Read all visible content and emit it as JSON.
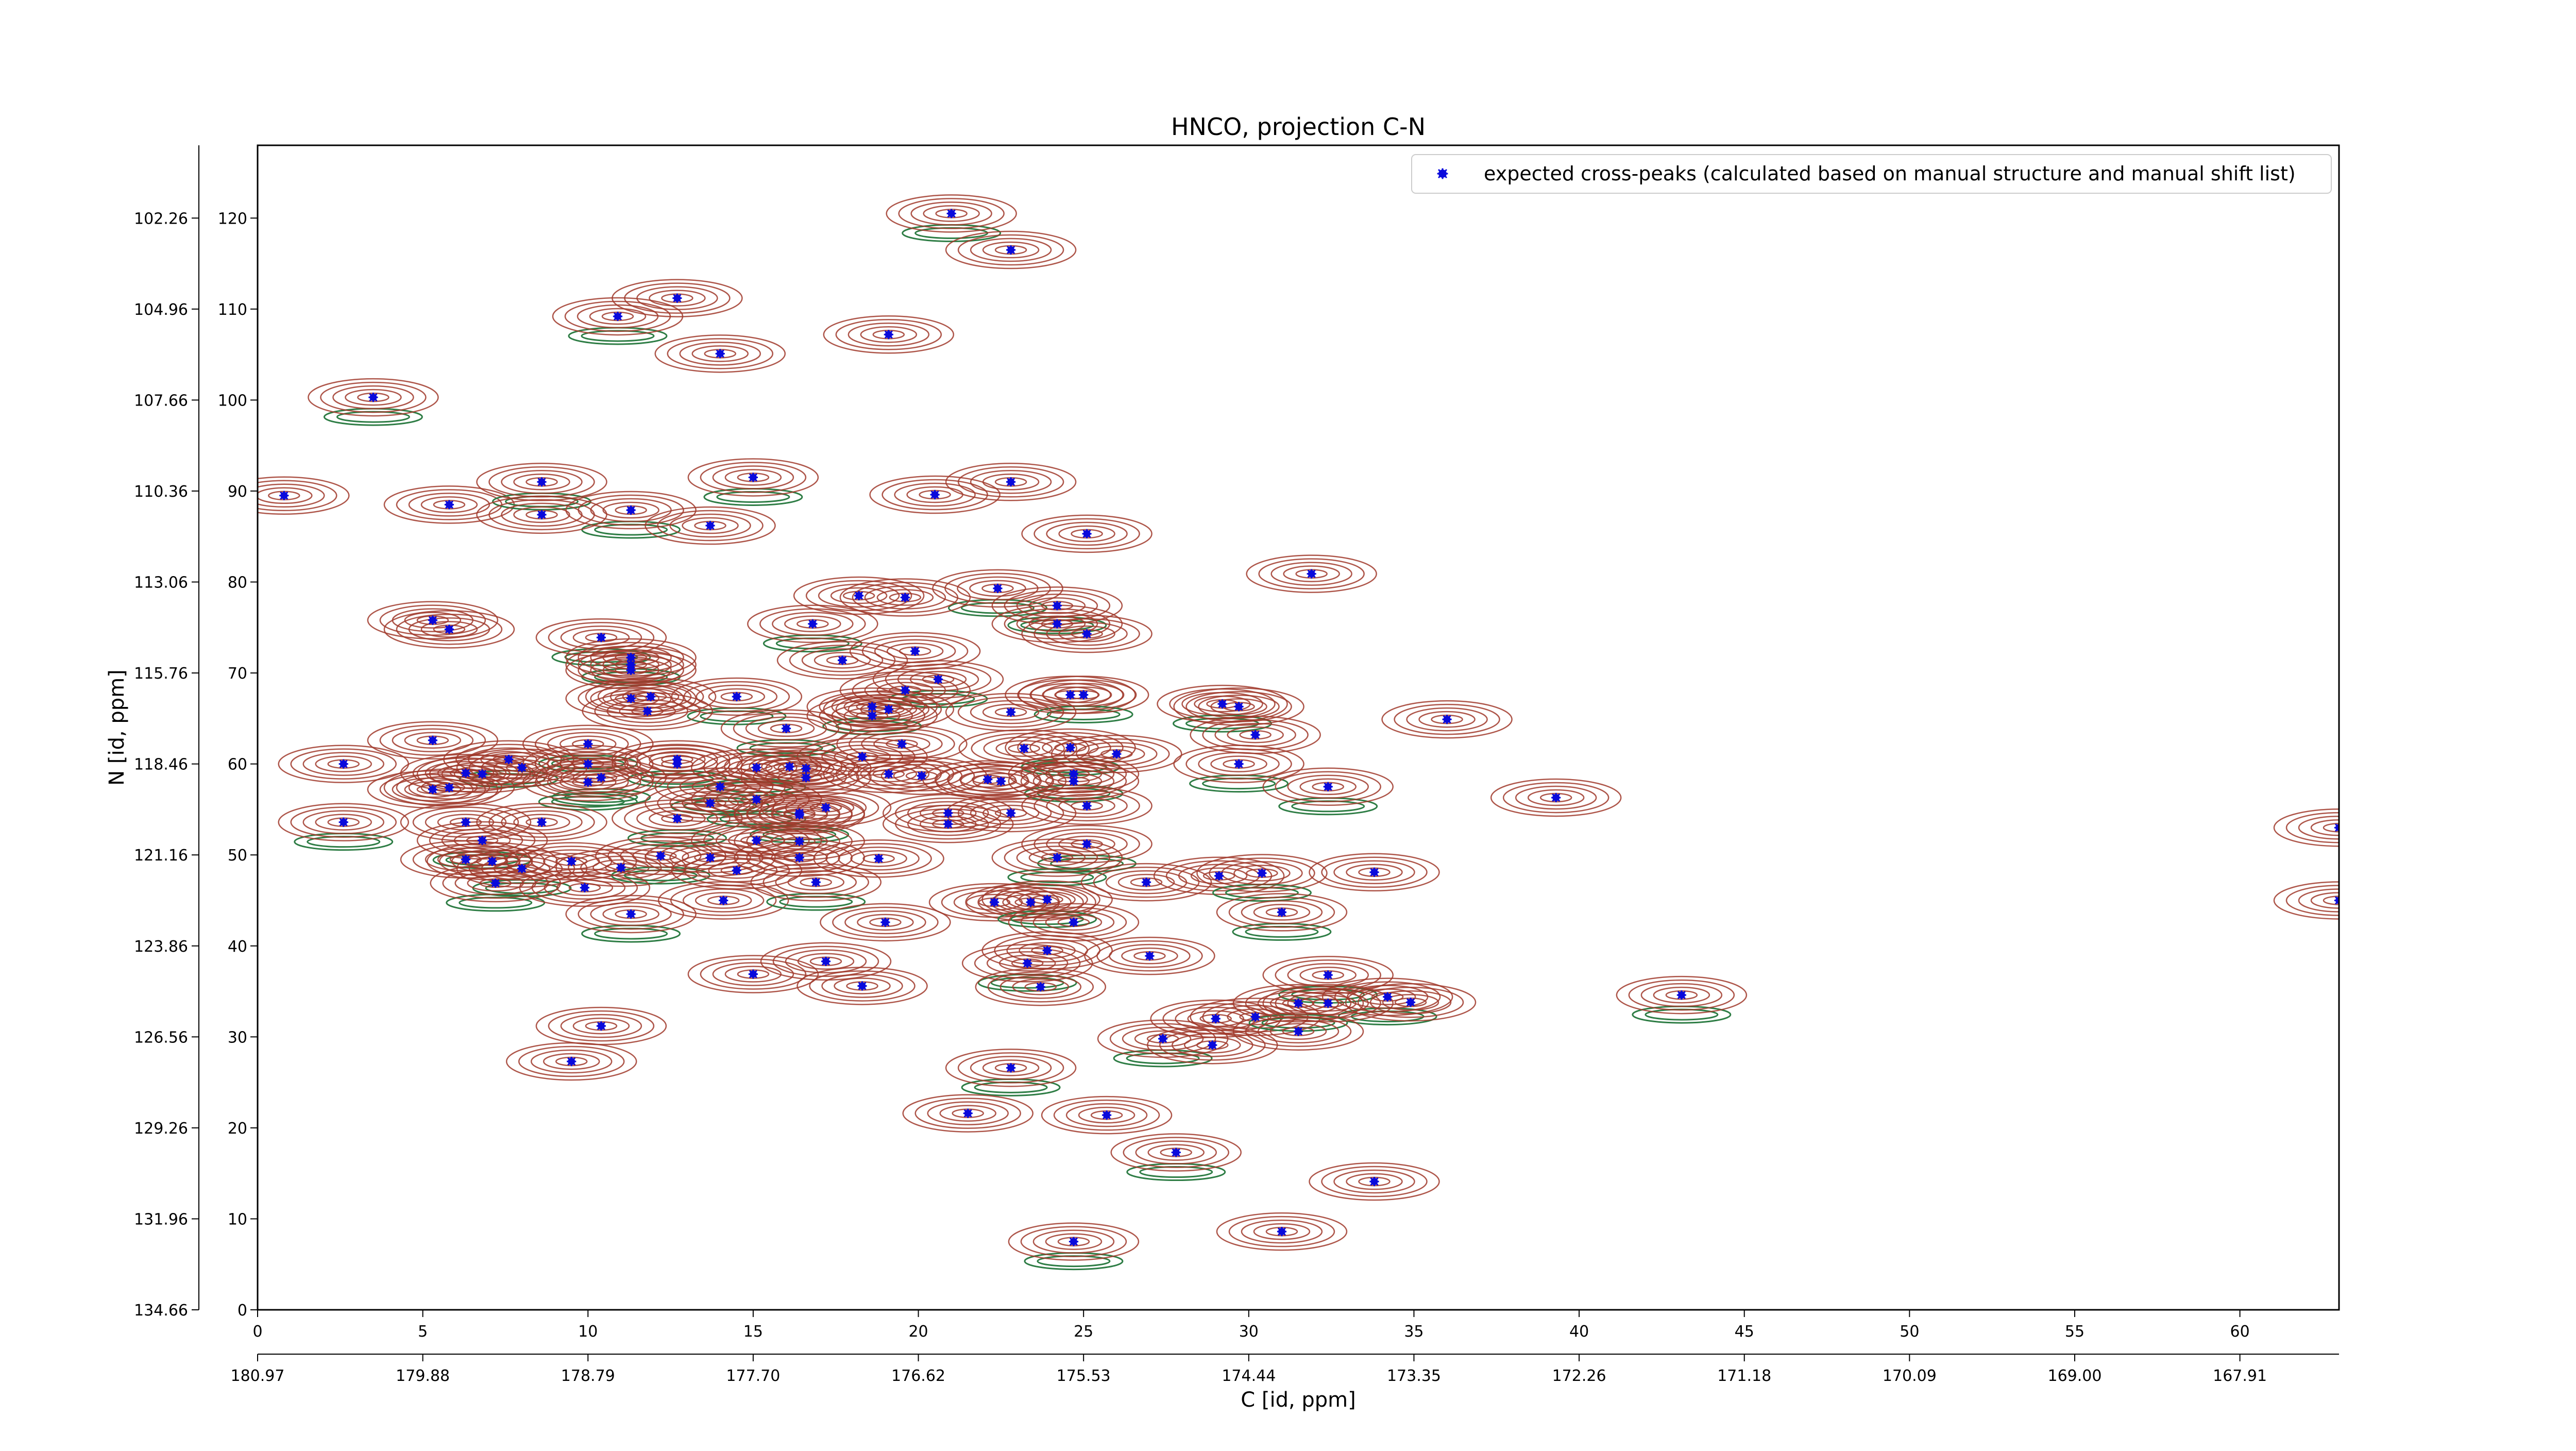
{
  "chart_data": {
    "type": "scatter",
    "title": "HNCO, projection C-N",
    "xlabel": "C [id, ppm]",
    "ylabel": "N [id, ppm]",
    "xlim": [
      0,
      63
    ],
    "ylim": [
      0,
      128
    ],
    "x_ticks": [
      0,
      5,
      10,
      15,
      20,
      25,
      30,
      35,
      40,
      45,
      50,
      55,
      60
    ],
    "y_ticks": [
      0,
      10,
      20,
      30,
      40,
      50,
      60,
      70,
      80,
      90,
      100,
      110,
      120
    ],
    "x_ppm_tick_labels": [
      "180.97",
      "179.88",
      "178.79",
      "177.70",
      "176.62",
      "175.53",
      "174.44",
      "173.35",
      "172.26",
      "171.18",
      "170.09",
      "169.00",
      "167.91"
    ],
    "y_ppm_tick_labels": [
      "134.66",
      "131.96",
      "129.26",
      "126.56",
      "123.86",
      "121.16",
      "118.46",
      "115.76",
      "113.06",
      "110.36",
      "107.66",
      "104.96",
      "102.26"
    ],
    "legend": {
      "position": "top-right",
      "label": "expected cross-peaks (calculated based on manual structure and manual shift list)"
    },
    "colors": {
      "contour_positive": "#a0382a",
      "contour_negative": "#2e7d45",
      "marker": "#0a0adc"
    },
    "series": [
      {
        "name": "expected cross-peaks (calculated based on manual structure and manual shift list)",
        "points": [
          [
            21,
            120.5
          ],
          [
            22.8,
            116.5
          ],
          [
            12.7,
            111.2
          ],
          [
            10.9,
            109.2
          ],
          [
            19.1,
            107.2
          ],
          [
            14,
            105.1
          ],
          [
            3.5,
            100.3
          ],
          [
            0.8,
            89.5
          ],
          [
            5.8,
            88.5
          ],
          [
            8.6,
            91
          ],
          [
            22.8,
            91
          ],
          [
            20.5,
            89.6
          ],
          [
            11.3,
            87.9
          ],
          [
            8.6,
            87.4
          ],
          [
            13.7,
            86.2
          ],
          [
            15,
            91.5
          ],
          [
            25.1,
            85.3
          ],
          [
            31.9,
            80.9
          ],
          [
            22.4,
            79.3
          ],
          [
            18.2,
            78.5
          ],
          [
            19.6,
            78.3
          ],
          [
            24.2,
            77.4
          ],
          [
            5.3,
            75.8
          ],
          [
            5.8,
            74.8
          ],
          [
            16.8,
            75.4
          ],
          [
            24.2,
            75.4
          ],
          [
            25.1,
            74.3
          ],
          [
            10.4,
            73.9
          ],
          [
            19.9,
            72.4
          ],
          [
            17.7,
            71.4
          ],
          [
            11.3,
            71.7
          ],
          [
            11.3,
            70.9
          ],
          [
            11.3,
            70.3
          ],
          [
            20.6,
            69.3
          ],
          [
            19.6,
            68.1
          ],
          [
            11.9,
            67.4
          ],
          [
            14.5,
            67.4
          ],
          [
            11.3,
            67.2
          ],
          [
            24.6,
            67.6
          ],
          [
            25,
            67.6
          ],
          [
            11.8,
            65.8
          ],
          [
            19.1,
            66
          ],
          [
            18.6,
            66.3
          ],
          [
            18.6,
            65.3
          ],
          [
            22.8,
            65.7
          ],
          [
            29.2,
            66.6
          ],
          [
            29.7,
            66.3
          ],
          [
            36,
            64.9
          ],
          [
            16,
            63.9
          ],
          [
            30.2,
            63.2
          ],
          [
            5.3,
            62.6
          ],
          [
            10,
            62.2
          ],
          [
            19.5,
            62.2
          ],
          [
            23.2,
            61.7
          ],
          [
            24.6,
            61.8
          ],
          [
            26,
            61.1
          ],
          [
            18.3,
            60.8
          ],
          [
            12.7,
            60.5
          ],
          [
            12.7,
            60
          ],
          [
            2.6,
            60
          ],
          [
            7.6,
            60.5
          ],
          [
            8,
            59.6
          ],
          [
            10,
            60
          ],
          [
            15.1,
            59.6
          ],
          [
            16.1,
            59.7
          ],
          [
            16.6,
            59.5
          ],
          [
            29.7,
            60
          ],
          [
            6.3,
            59
          ],
          [
            6.8,
            58.9
          ],
          [
            10.4,
            58.5
          ],
          [
            19.1,
            58.9
          ],
          [
            20.1,
            58.7
          ],
          [
            24.7,
            58.9
          ],
          [
            16.6,
            58.5
          ],
          [
            22.1,
            58.3
          ],
          [
            10,
            58
          ],
          [
            5.3,
            57.2
          ],
          [
            5.8,
            57.4
          ],
          [
            14,
            57.5
          ],
          [
            22.5,
            58.1
          ],
          [
            24.7,
            58.1
          ],
          [
            32.4,
            57.5
          ],
          [
            39.3,
            56.3
          ],
          [
            13.7,
            55.7
          ],
          [
            15.1,
            56.1
          ],
          [
            17.2,
            55.2
          ],
          [
            25.1,
            55.4
          ],
          [
            16.4,
            54.4
          ],
          [
            16.4,
            54.6
          ],
          [
            20.9,
            54.6
          ],
          [
            2.6,
            53.6
          ],
          [
            6.3,
            53.6
          ],
          [
            8.6,
            53.6
          ],
          [
            12.7,
            54
          ],
          [
            20.9,
            53.4
          ],
          [
            22.8,
            54.6
          ],
          [
            6.8,
            51.6
          ],
          [
            15.1,
            51.6
          ],
          [
            16.4,
            51.5
          ],
          [
            25.1,
            51.2
          ],
          [
            6.3,
            49.5
          ],
          [
            7.1,
            49.3
          ],
          [
            8,
            48.5
          ],
          [
            9.5,
            49.3
          ],
          [
            11,
            48.6
          ],
          [
            12.2,
            49.9
          ],
          [
            13.7,
            49.7
          ],
          [
            18.8,
            49.6
          ],
          [
            24.2,
            49.7
          ],
          [
            16.4,
            49.7
          ],
          [
            14.5,
            48.3
          ],
          [
            7.2,
            46.9
          ],
          [
            9.9,
            46.4
          ],
          [
            14.1,
            45
          ],
          [
            16.9,
            47
          ],
          [
            22.3,
            44.8
          ],
          [
            23.4,
            44.8
          ],
          [
            23.9,
            45.1
          ],
          [
            26.9,
            47
          ],
          [
            29.1,
            47.7
          ],
          [
            30.4,
            48
          ],
          [
            33.8,
            48.1
          ],
          [
            63,
            53
          ],
          [
            11.3,
            43.5
          ],
          [
            19,
            42.6
          ],
          [
            24.7,
            42.6
          ],
          [
            31,
            43.7
          ],
          [
            23.9,
            39.5
          ],
          [
            17.2,
            38.3
          ],
          [
            23.3,
            38.1
          ],
          [
            27,
            38.9
          ],
          [
            15,
            36.9
          ],
          [
            32.4,
            36.8
          ],
          [
            18.3,
            35.6
          ],
          [
            23.7,
            35.5
          ],
          [
            34.2,
            34.4
          ],
          [
            29,
            32
          ],
          [
            30.2,
            32.2
          ],
          [
            31.5,
            33.7
          ],
          [
            32.4,
            33.7
          ],
          [
            34.9,
            33.8
          ],
          [
            43.1,
            34.6
          ],
          [
            31.5,
            30.6
          ],
          [
            10.4,
            31.2
          ],
          [
            27.4,
            29.8
          ],
          [
            28.9,
            29.1
          ],
          [
            9.5,
            27.3
          ],
          [
            22.8,
            26.6
          ],
          [
            21.5,
            21.6
          ],
          [
            25.7,
            21.4
          ],
          [
            27.8,
            17.3
          ],
          [
            33.8,
            14.1
          ],
          [
            31,
            8.6
          ],
          [
            24.7,
            7.5
          ],
          [
            63,
            45
          ]
        ]
      }
    ]
  }
}
